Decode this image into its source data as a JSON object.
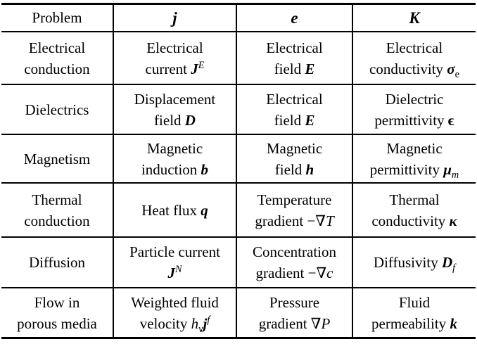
{
  "colors": {
    "background": "#ffffff",
    "text": "#000000",
    "rule": "#000000"
  },
  "table": {
    "header": {
      "problem": "Problem",
      "j": "j",
      "e": "e",
      "k": "K"
    },
    "rows": [
      {
        "cells": [
          [
            {
              "t": "Electrical"
            },
            {
              "br": true
            },
            {
              "t": "conduction"
            }
          ],
          [
            {
              "t": "Electrical"
            },
            {
              "br": true
            },
            {
              "t": "current "
            },
            {
              "t": "J",
              "f": "bi"
            },
            {
              "t": "E",
              "f": "i",
              "pos": "sup"
            }
          ],
          [
            {
              "t": "Electrical"
            },
            {
              "br": true
            },
            {
              "t": "field "
            },
            {
              "t": "E",
              "f": "bi"
            }
          ],
          [
            {
              "t": "Electrical"
            },
            {
              "br": true
            },
            {
              "t": "conductivity "
            },
            {
              "t": "σ",
              "f": "bi"
            },
            {
              "t": "e",
              "pos": "sub"
            }
          ]
        ]
      },
      {
        "cells": [
          [
            {
              "t": "Dielectrics"
            }
          ],
          [
            {
              "t": "Displacement"
            },
            {
              "br": true
            },
            {
              "t": "field "
            },
            {
              "t": "D",
              "f": "bi"
            }
          ],
          [
            {
              "t": "Electrical"
            },
            {
              "br": true
            },
            {
              "t": "field "
            },
            {
              "t": "E",
              "f": "bi"
            }
          ],
          [
            {
              "t": "Dielectric"
            },
            {
              "br": true
            },
            {
              "t": "permittivity "
            },
            {
              "t": "ϵ",
              "f": "b"
            }
          ]
        ]
      },
      {
        "cells": [
          [
            {
              "t": "Magnetism"
            }
          ],
          [
            {
              "t": "Magnetic"
            },
            {
              "br": true
            },
            {
              "t": "induction "
            },
            {
              "t": "b",
              "f": "bi"
            }
          ],
          [
            {
              "t": "Magnetic"
            },
            {
              "br": true
            },
            {
              "t": "field "
            },
            {
              "t": "h",
              "f": "bi"
            }
          ],
          [
            {
              "t": "Magnetic"
            },
            {
              "br": true
            },
            {
              "t": "permittivity "
            },
            {
              "t": "μ",
              "f": "bi"
            },
            {
              "t": "m",
              "f": "i",
              "pos": "sub"
            }
          ]
        ]
      },
      {
        "cells": [
          [
            {
              "t": "Thermal"
            },
            {
              "br": true
            },
            {
              "t": "conduction"
            }
          ],
          [
            {
              "t": "Heat flux "
            },
            {
              "t": "q",
              "f": "bi"
            }
          ],
          [
            {
              "t": "Temperature"
            },
            {
              "br": true
            },
            {
              "t": "gradient −∇"
            },
            {
              "t": "T",
              "f": "i"
            }
          ],
          [
            {
              "t": "Thermal"
            },
            {
              "br": true
            },
            {
              "t": "conductivity "
            },
            {
              "t": "κ",
              "f": "bi"
            }
          ]
        ]
      },
      {
        "cells": [
          [
            {
              "t": "Diffusion"
            }
          ],
          [
            {
              "t": "Particle current"
            },
            {
              "br": true
            },
            {
              "t": "J",
              "f": "bi"
            },
            {
              "t": "N",
              "f": "i",
              "pos": "sup"
            }
          ],
          [
            {
              "t": "Concentration"
            },
            {
              "br": true
            },
            {
              "t": "gradient −∇"
            },
            {
              "t": "c",
              "f": "i"
            }
          ],
          [
            {
              "t": "Diffusivity "
            },
            {
              "t": "D",
              "f": "bi"
            },
            {
              "t": "f",
              "f": "i",
              "pos": "sub"
            }
          ]
        ]
      },
      {
        "cells": [
          [
            {
              "t": "Flow in"
            },
            {
              "br": true
            },
            {
              "t": "porous media"
            }
          ],
          [
            {
              "t": "Weighted fluid"
            },
            {
              "br": true
            },
            {
              "t": "velocity "
            },
            {
              "t": "h",
              "f": "i"
            },
            {
              "t": "v",
              "f": "i",
              "pos": "sub"
            },
            {
              "t": "j",
              "f": "bi"
            },
            {
              "t": "f",
              "f": "i",
              "pos": "sup"
            }
          ],
          [
            {
              "t": "Pressure"
            },
            {
              "br": true
            },
            {
              "t": "gradient ∇"
            },
            {
              "t": "P",
              "f": "i"
            }
          ],
          [
            {
              "t": "Fluid"
            },
            {
              "br": true
            },
            {
              "t": "permeability "
            },
            {
              "t": "k",
              "f": "bi"
            }
          ]
        ]
      }
    ]
  }
}
